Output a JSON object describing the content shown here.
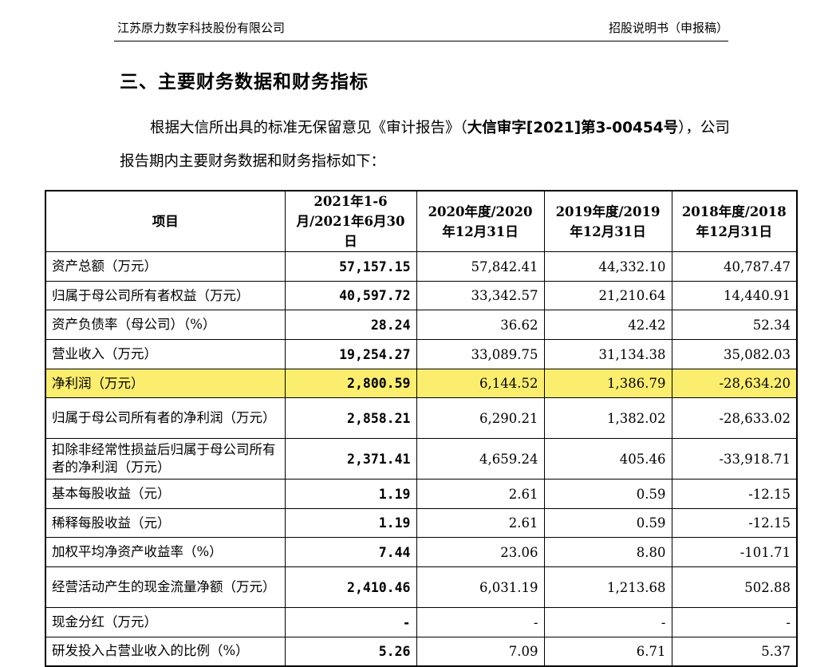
{
  "header": {
    "company": "江苏原力数字科技股份有限公司",
    "doc_type": "招股说明书（申报稿）"
  },
  "section_title": "三、主要财务数据和财务指标",
  "intro": {
    "before": "根据大信所出具的标准无保留意见《审计报告》（",
    "bold": "大信审字[2021]第3-00454号",
    "after": "），公司报告期内主要财务数据和财务指标如下："
  },
  "table": {
    "headers": [
      "项目",
      "2021年1-6月/2021年6月30日",
      "2020年度/2020年12月31日",
      "2019年度/2019年12月31日",
      "2018年度/2018年12月31日"
    ],
    "rows": [
      {
        "label": "资产总额（万元）",
        "values": [
          "57,157.15",
          "57,842.41",
          "44,332.10",
          "40,787.47"
        ]
      },
      {
        "label": "归属于母公司所有者权益（万元）",
        "values": [
          "40,597.72",
          "33,342.57",
          "21,210.64",
          "14,440.91"
        ]
      },
      {
        "label": "资产负债率（母公司）（%）",
        "values": [
          "28.24",
          "36.62",
          "42.42",
          "52.34"
        ]
      },
      {
        "label": "营业收入（万元）",
        "values": [
          "19,254.27",
          "33,089.75",
          "31,134.38",
          "35,082.03"
        ]
      },
      {
        "label": "净利润（万元）",
        "values": [
          "2,800.59",
          "6,144.52",
          "1,386.79",
          "-28,634.20"
        ],
        "highlight": true
      },
      {
        "label": "归属于母公司所有者的净利润（万元）",
        "values": [
          "2,858.21",
          "6,290.21",
          "1,382.02",
          "-28,633.02"
        ]
      },
      {
        "label": "扣除非经常性损益后归属于母公司所有者的净利润（万元）",
        "values": [
          "2,371.41",
          "4,659.24",
          "405.46",
          "-33,918.71"
        ]
      },
      {
        "label": "基本每股收益（元）",
        "values": [
          "1.19",
          "2.61",
          "0.59",
          "-12.15"
        ]
      },
      {
        "label": "稀释每股收益（元）",
        "values": [
          "1.19",
          "2.61",
          "0.59",
          "-12.15"
        ]
      },
      {
        "label": "加权平均净资产收益率（%）",
        "values": [
          "7.44",
          "23.06",
          "8.80",
          "-101.71"
        ]
      },
      {
        "label": "经营活动产生的现金流量净额（万元）",
        "values": [
          "2,410.46",
          "6,031.19",
          "1,213.68",
          "502.88"
        ]
      },
      {
        "label": "现金分红（万元）",
        "values": [
          "-",
          "-",
          "-",
          "-"
        ]
      },
      {
        "label": "研发投入占营业收入的比例（%）",
        "values": [
          "5.26",
          "7.09",
          "6.71",
          "5.37"
        ]
      }
    ]
  },
  "colors": {
    "highlight": "#fbee6e"
  }
}
